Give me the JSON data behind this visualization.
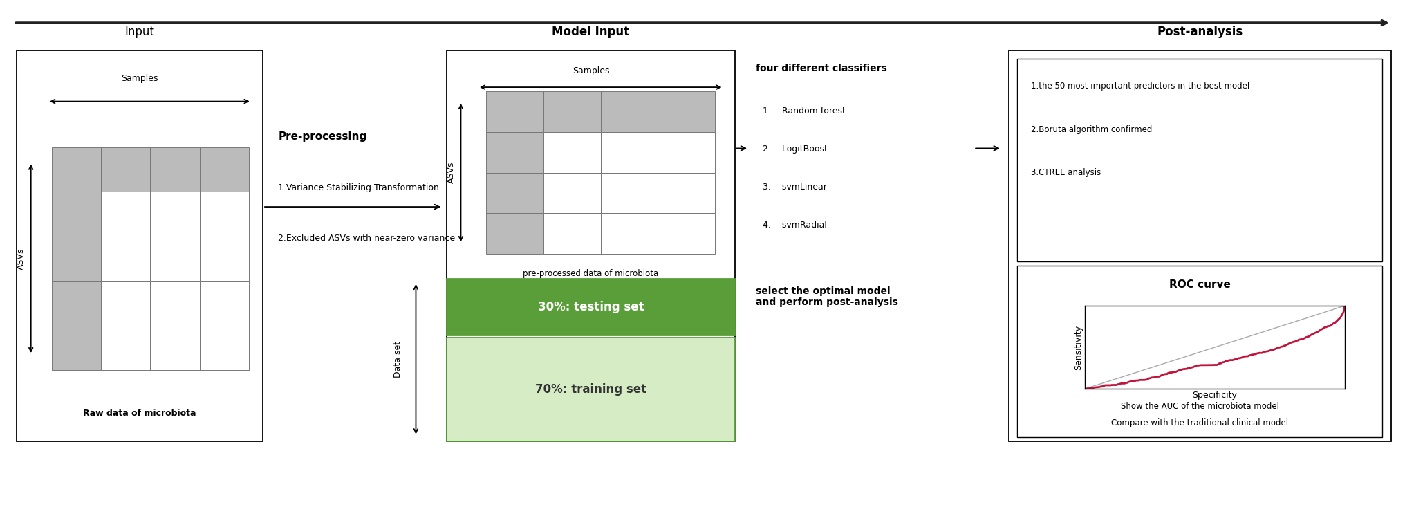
{
  "fig_width": 20.32,
  "fig_height": 7.33,
  "bg_color": "#ffffff",
  "table_fill_col0": "#b8b8b8",
  "table_fill_row0": "#c8c8c8",
  "table_fill_rest": "#ffffff",
  "table_border": "#666666",
  "green_dark": "#5a9e3a",
  "green_light": "#d6ecc4",
  "green_dark_border": "#4a8a2a",
  "roc_line_color": "#c0143c",
  "diagonal_color": "#aaaaaa",
  "section_titles": [
    "Input",
    "Model Input",
    "Post-analysis"
  ],
  "input_title": "Input",
  "model_input_title": "Model Input",
  "post_analysis_title": "Post-analysis",
  "preprocessing_title": "Pre-processing",
  "preprocessing_items": [
    "1.Variance Stabilizing Transformation",
    "2.Excluded ASVs with near-zero variance"
  ],
  "classifiers_title": "four different classifiers",
  "classifiers_items": [
    "1.    Random forest",
    "2.    LogitBoost",
    "3.    svmLinear",
    "4.    svmRadial"
  ],
  "classifiers_footer": "select the optimal model\nand perform post-analysis",
  "post_items": [
    "1.the 50 most important predictors in the best model",
    "2.Boruta algorithm confirmed",
    "3.CTREE analysis"
  ],
  "roc_title": "ROC curve",
  "roc_xlabel": "Specificity",
  "roc_ylabel": "Sensitivity",
  "roc_footer1": "Show the AUC of the microbiota model",
  "roc_footer2": "Compare with the traditional clinical model",
  "raw_label": "Raw data of microbiota",
  "processed_label": "pre-processed data of microbiota",
  "samples_label": "Samples",
  "asvs_label": "ASVs",
  "data_set_label": "Data set",
  "testing_label": "30%: testing set",
  "training_label": "70%: training set"
}
